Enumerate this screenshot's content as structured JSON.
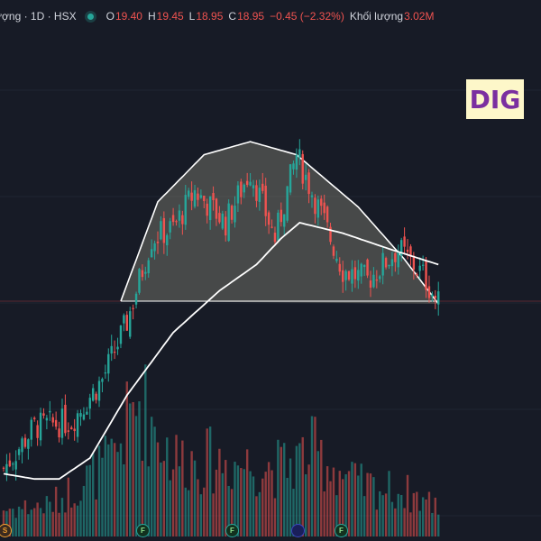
{
  "header": {
    "symbol": "ượng · 1D · HSX",
    "open_label": "O",
    "open": "19.40",
    "high_label": "H",
    "high": "19.45",
    "low_label": "L",
    "low": "18.95",
    "close_label": "C",
    "close": "18.95",
    "change": "−0.45 (−2.32%)",
    "volume_label": "Khối lượng",
    "volume": "3.02M"
  },
  "badge": {
    "ticker": "DIG"
  },
  "markers": [
    {
      "label": "S"
    },
    {
      "label": "F"
    },
    {
      "label": "F"
    },
    {
      "label": ""
    },
    {
      "label": "F"
    }
  ],
  "colors": {
    "background": "#171b26",
    "up": "#26a69a",
    "down": "#ef5350",
    "pattern_fill": "#8a8a7a",
    "line": "#ffffff"
  },
  "chart_data": {
    "type": "candlestick",
    "pattern": "rounding top (dome) with shaded area over neckline",
    "neckline": 19.0,
    "ma_line": "moving average (white)",
    "candle_keypoints": [
      {
        "i": 0,
        "price": 15.8
      },
      {
        "i": 10,
        "price": 16.6
      },
      {
        "i": 22,
        "price": 16.7
      },
      {
        "i": 32,
        "price": 17.5
      },
      {
        "i": 40,
        "price": 18.6
      },
      {
        "i": 48,
        "price": 20.2
      },
      {
        "i": 55,
        "price": 20.4
      },
      {
        "i": 62,
        "price": 21.1
      },
      {
        "i": 72,
        "price": 20.5
      },
      {
        "i": 80,
        "price": 21.5
      },
      {
        "i": 88,
        "price": 20.2
      },
      {
        "i": 95,
        "price": 21.8
      },
      {
        "i": 102,
        "price": 20.8
      },
      {
        "i": 110,
        "price": 19.6
      },
      {
        "i": 118,
        "price": 19.4
      },
      {
        "i": 128,
        "price": 20.0
      },
      {
        "i": 136,
        "price": 19.5
      },
      {
        "i": 141,
        "price": 18.95
      }
    ],
    "ma_keypoints": [
      {
        "i": 0,
        "price": 15.7
      },
      {
        "i": 10,
        "price": 15.6
      },
      {
        "i": 18,
        "price": 15.6
      },
      {
        "i": 28,
        "price": 16.0
      },
      {
        "i": 40,
        "price": 17.2
      },
      {
        "i": 55,
        "price": 18.4
      },
      {
        "i": 70,
        "price": 19.2
      },
      {
        "i": 82,
        "price": 19.7
      },
      {
        "i": 90,
        "price": 20.2
      },
      {
        "i": 96,
        "price": 20.5
      },
      {
        "i": 110,
        "price": 20.3
      },
      {
        "i": 125,
        "price": 20.0
      },
      {
        "i": 141,
        "price": 19.7
      }
    ],
    "dome_keypoints": [
      {
        "i": 38,
        "price": 19.0
      },
      {
        "i": 50,
        "price": 20.9
      },
      {
        "i": 65,
        "price": 21.8
      },
      {
        "i": 80,
        "price": 22.05
      },
      {
        "i": 95,
        "price": 21.8
      },
      {
        "i": 115,
        "price": 20.8
      },
      {
        "i": 130,
        "price": 19.8
      },
      {
        "i": 141,
        "price": 18.95
      }
    ],
    "volume_keypoints": [
      {
        "i": 0,
        "v": 0.8
      },
      {
        "i": 15,
        "v": 0.9
      },
      {
        "i": 35,
        "v": 2.2
      },
      {
        "i": 44,
        "v": 4.0
      },
      {
        "i": 55,
        "v": 2.3
      },
      {
        "i": 70,
        "v": 2.2
      },
      {
        "i": 90,
        "v": 2.0
      },
      {
        "i": 100,
        "v": 2.5
      },
      {
        "i": 115,
        "v": 1.5
      },
      {
        "i": 130,
        "v": 1.3
      },
      {
        "i": 141,
        "v": 0.9
      }
    ]
  }
}
